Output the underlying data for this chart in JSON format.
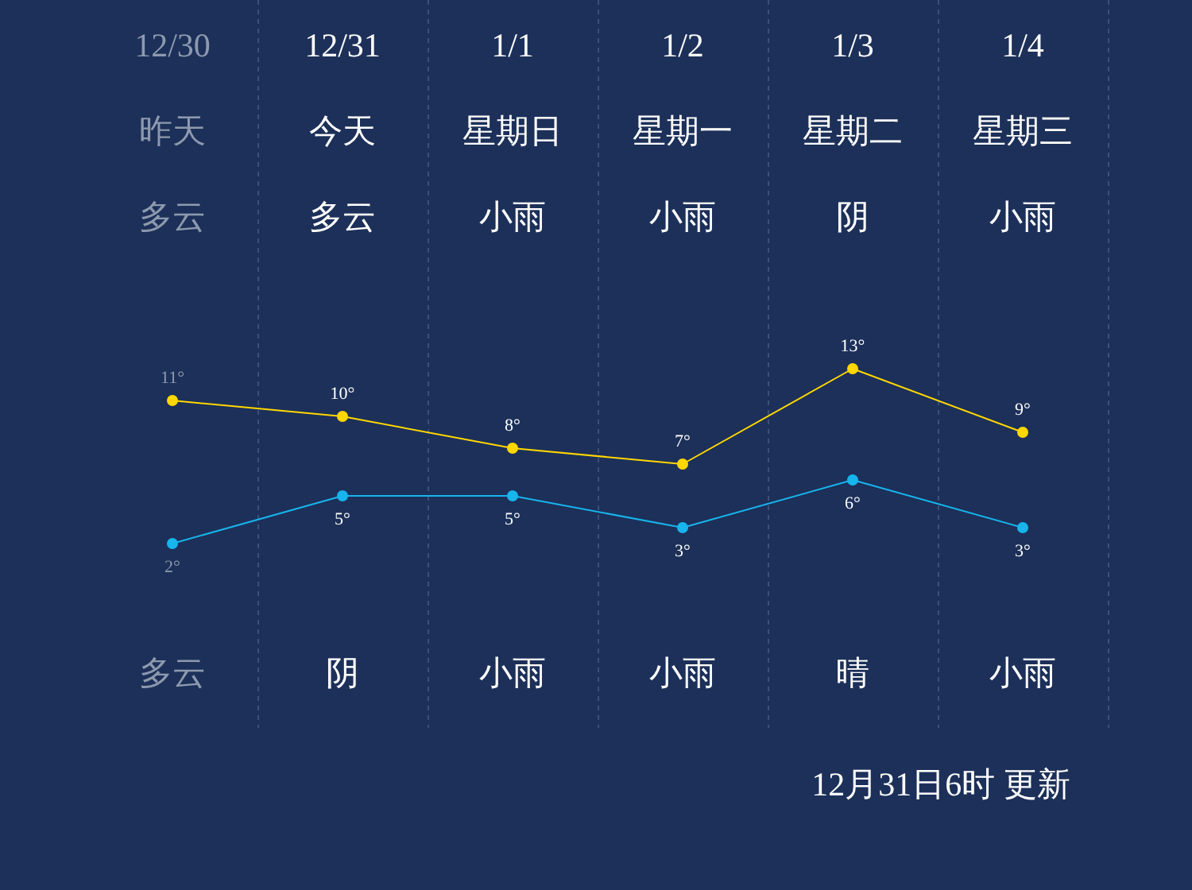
{
  "chart_data": {
    "type": "line",
    "categories": [
      "12/30",
      "12/31",
      "1/1",
      "1/2",
      "1/3",
      "1/4"
    ],
    "series": [
      {
        "color": "#ffd700",
        "values": [
          11,
          10,
          8,
          7,
          13,
          9
        ],
        "value_labels": [
          "11°",
          "10°",
          "8°",
          "7°",
          "13°",
          "9°"
        ]
      },
      {
        "color": "#18b4ec",
        "values": [
          2,
          5,
          5,
          3,
          6,
          3
        ],
        "value_labels": [
          "2°",
          "5°",
          "5°",
          "3°",
          "6°",
          "3°"
        ]
      }
    ],
    "annotations": [
      "昨天",
      "今天",
      "星期日",
      "星期一",
      "星期二",
      "星期三",
      "多云",
      "多云",
      "小雨",
      "小雨",
      "阴",
      "小雨",
      "多云",
      "阴",
      "小雨",
      "小雨",
      "晴",
      "小雨",
      "12月31日6时 更新"
    ],
    "grid": "x",
    "legend": false,
    "marker": "circle",
    "line_style": "solid"
  }
}
